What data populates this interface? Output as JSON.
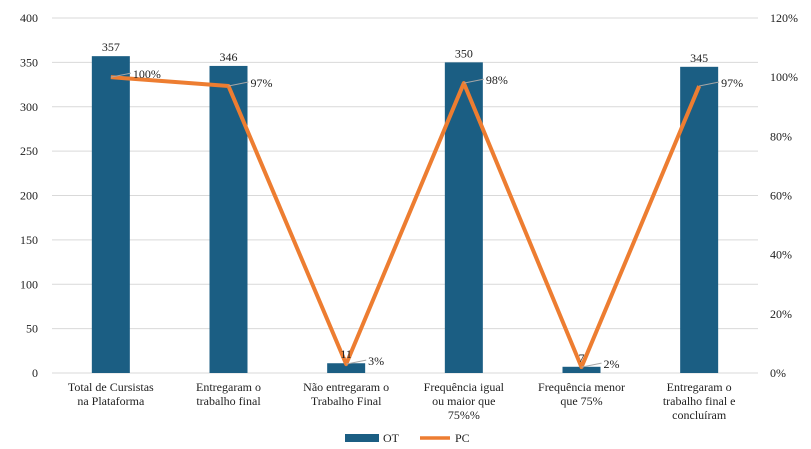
{
  "chart_data": {
    "type": "bar",
    "title": "",
    "categories": [
      [
        "Total de Cursistas",
        "na Plataforma"
      ],
      [
        "Entregaram o",
        "trabalho final"
      ],
      [
        "Não entregaram o",
        "Trabalho Final"
      ],
      [
        "Frequência igual",
        "ou maior que",
        "75%%"
      ],
      [
        "Frequência menor",
        "que 75%"
      ],
      [
        "Entregaram o",
        "trabalho final e",
        "concluíram"
      ]
    ],
    "series": [
      {
        "name": "OT",
        "type": "bar",
        "axis": "left",
        "color": "#1b5e83",
        "values": [
          357,
          346,
          11,
          350,
          7,
          345
        ],
        "labels": [
          "357",
          "346",
          "11",
          "350",
          "7",
          "345"
        ]
      },
      {
        "name": "PC",
        "type": "line",
        "axis": "right",
        "color": "#ed7d31",
        "values": [
          100,
          97,
          3,
          98,
          2,
          97
        ],
        "labels": [
          "100%",
          "97%",
          "3%",
          "98%",
          "2%",
          "97%"
        ]
      }
    ],
    "y_left": {
      "min": 0,
      "max": 400,
      "ticks": [
        "0",
        "50",
        "100",
        "150",
        "200",
        "250",
        "300",
        "350",
        "400"
      ]
    },
    "y_right": {
      "min": 0,
      "max": 120,
      "ticks": [
        "0%",
        "20%",
        "40%",
        "60%",
        "80%",
        "100%",
        "120%"
      ]
    },
    "grid": true,
    "legend": {
      "position": "bottom",
      "entries": [
        "OT",
        "PC"
      ]
    }
  }
}
